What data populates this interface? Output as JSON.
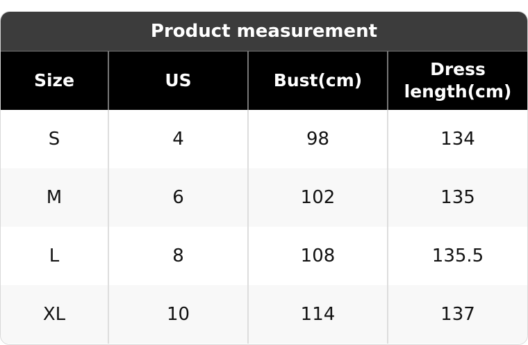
{
  "title": "Product measurement",
  "headers": [
    "Size",
    "US",
    "Bust(cm)",
    "Dress length(cm)"
  ],
  "rows": [
    [
      "S",
      "4",
      "98",
      "134"
    ],
    [
      "M",
      "6",
      "102",
      "135"
    ],
    [
      "L",
      "8",
      "108",
      "135.5"
    ],
    [
      "XL",
      "10",
      "114",
      "137"
    ]
  ]
}
